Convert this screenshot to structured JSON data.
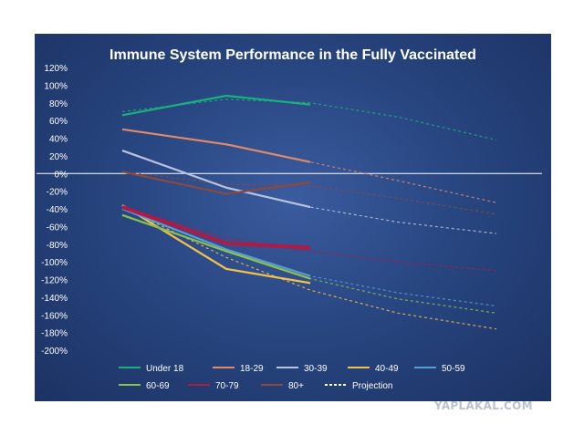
{
  "watermark": "YAPLAKAL.COM",
  "chart_data": {
    "type": "line",
    "title": "Immune System Performance in the Fully Vaccinated",
    "xlabel": "",
    "ylabel": "",
    "ylim": [
      -200,
      120
    ],
    "y_ticks": [
      "120%",
      "100%",
      "80%",
      "60%",
      "40%",
      "20%",
      "0%",
      "-20%",
      "-40%",
      "-60%",
      "-80%",
      "-100%",
      "-120%",
      "-140%",
      "-160%",
      "-180%",
      "-200%"
    ],
    "y_tick_values": [
      120,
      100,
      80,
      60,
      40,
      20,
      0,
      -20,
      -40,
      -60,
      -80,
      -100,
      -120,
      -140,
      -160,
      -180,
      -200
    ],
    "x_points": [
      1,
      2,
      3,
      4,
      5
    ],
    "zero_line": true,
    "legend_position": "bottom",
    "series": [
      {
        "name": "Under 18",
        "color": "#1ab07c",
        "values": [
          66,
          88,
          78
        ],
        "projection": [
          70,
          84,
          80,
          64,
          38
        ]
      },
      {
        "name": "18-29",
        "color": "#e08a6a",
        "values": [
          50,
          33,
          13
        ],
        "projection": [
          50,
          33,
          13,
          -8,
          -33
        ]
      },
      {
        "name": "30-39",
        "color": "#b8c4de",
        "values": [
          26,
          -16,
          -38
        ],
        "projection": [
          26,
          -16,
          -38,
          -55,
          -68
        ]
      },
      {
        "name": "40-49",
        "color": "#f2c14a",
        "values": [
          -36,
          -108,
          -124
        ],
        "projection": [
          -38,
          -95,
          -132,
          -158,
          -176
        ]
      },
      {
        "name": "50-59",
        "color": "#5b9bd5",
        "values": [
          -40,
          -86,
          -116
        ],
        "projection": [
          -40,
          -86,
          -116,
          -135,
          -150
        ]
      },
      {
        "name": "60-69",
        "color": "#8bc34a",
        "values": [
          -47,
          -88,
          -119
        ],
        "projection": [
          -47,
          -88,
          -119,
          -142,
          -158
        ]
      },
      {
        "name": "70-79",
        "color": "#b01a45",
        "values": [
          -38,
          -79,
          -84
        ],
        "projection": [
          -38,
          -73,
          -88,
          -100,
          -110
        ]
      },
      {
        "name": "80+",
        "color": "#8a4a3e",
        "values": [
          2,
          -23,
          -10
        ],
        "projection": [
          2,
          -12,
          -14,
          -28,
          -46
        ]
      }
    ],
    "projection_label": "Projection",
    "projection_color": "#ffffff"
  }
}
